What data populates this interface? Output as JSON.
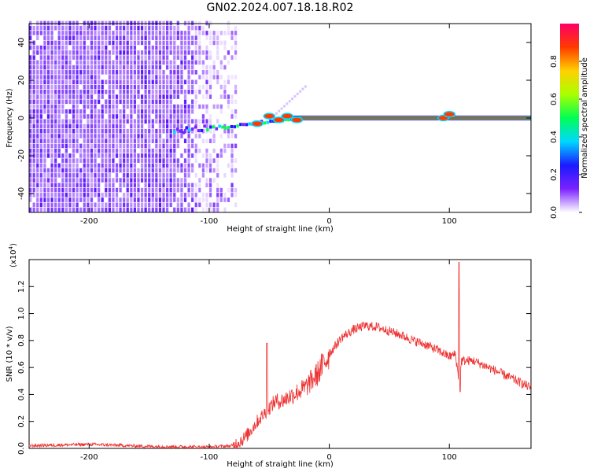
{
  "title": "GN02.2024.007.18.18.R02",
  "spectrogram": {
    "xlabel": "Height of straight line (km)",
    "ylabel": "Frequency (Hz)",
    "xlim": [
      -250,
      168
    ],
    "ylim": [
      -50,
      50
    ],
    "xticks": [
      -200,
      -100,
      0,
      100
    ],
    "yticks": [
      -40,
      -20,
      0,
      20,
      40
    ],
    "carrier_freq_hz": 0,
    "colorbar": {
      "label": "Normalized spectral amplitude",
      "range": [
        0,
        1
      ],
      "ticks": [
        "0.0",
        "0.2",
        "0.4",
        "0.6",
        "0.8"
      ],
      "colormap": [
        "#ffffff",
        "#7b22ff",
        "#1a1aff",
        "#00d8ff",
        "#00ff55",
        "#aaff00",
        "#ffd000",
        "#ff3a00",
        "#ff0066"
      ]
    }
  },
  "snr_plot": {
    "xlabel": "Height of straight line (km)",
    "ylabel": "SNR (10 * v/v)",
    "scale_label": "(x10",
    "scale_exp": "4",
    "scale_close": ")",
    "xlim": [
      -250,
      168
    ],
    "ylim": [
      0,
      1.4
    ],
    "xticks": [
      -200,
      -100,
      0,
      100
    ],
    "yticks": [
      "0.0",
      "0.2",
      "0.4",
      "0.6",
      "0.8",
      "1.0",
      "1.2"
    ],
    "color": "#ee3333"
  },
  "chart_data": [
    {
      "type": "heatmap",
      "title": "GN02.2024.007.18.18.R02",
      "xlabel": "Height of straight line (km)",
      "ylabel": "Frequency (Hz)",
      "xlim": [
        -250,
        168
      ],
      "ylim": [
        -50,
        50
      ],
      "description_values": {
        "noise_region_height_km": [
          -250,
          -80
        ],
        "signal_line_frequency_hz": 0,
        "signal_onset_height_km": -130
      },
      "colorbar": {
        "label": "Normalized spectral amplitude",
        "range": [
          0,
          1
        ]
      }
    },
    {
      "type": "line",
      "xlabel": "Height of straight line (km)",
      "ylabel": "SNR (10 * v/v)",
      "xlim": [
        -250,
        168
      ],
      "ylim": [
        0,
        1.4
      ],
      "series": [
        {
          "x": [
            -250,
            -200,
            -150,
            -100,
            -80,
            -70,
            -60,
            -50,
            -45,
            -40,
            -30,
            -20,
            -10,
            0,
            10,
            20,
            30,
            40,
            50,
            60,
            70,
            80,
            90,
            100,
            105,
            108,
            110,
            120,
            140,
            168
          ],
          "y": [
            0.02,
            0.03,
            0.015,
            0.01,
            0.02,
            0.08,
            0.2,
            0.3,
            0.35,
            0.35,
            0.4,
            0.45,
            0.55,
            0.7,
            0.82,
            0.88,
            0.91,
            0.9,
            0.87,
            0.84,
            0.8,
            0.77,
            0.73,
            0.68,
            0.7,
            0.5,
            0.65,
            0.65,
            0.57,
            0.45
          ]
        }
      ],
      "annotations": {
        "spike_heights_km": [
          -52,
          108
        ]
      }
    }
  ]
}
